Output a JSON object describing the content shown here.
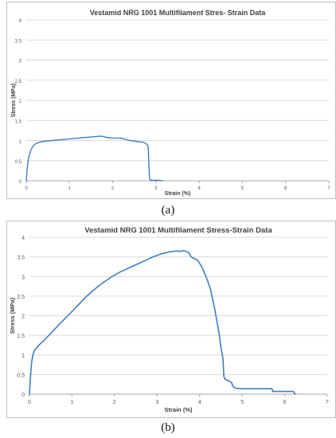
{
  "panels": [
    {
      "caption": "(a)",
      "chart_data": {
        "type": "line",
        "title": "Vestamid NRG 1001 Multifilament Stres- Strain Data",
        "xlabel": "Strain (%)",
        "ylabel": "Stress (MPa)",
        "xlim": [
          0,
          7
        ],
        "ylim": [
          0,
          4
        ],
        "xticks": [
          0,
          1,
          2,
          3,
          4,
          5,
          6,
          7
        ],
        "yticks": [
          0,
          0.5,
          1,
          1.5,
          2,
          2.5,
          3,
          3.5,
          4
        ],
        "ytick_labels": [
          "0",
          "0.5",
          "1",
          "1.5",
          "2",
          "2.5",
          "3",
          "3.5",
          "4"
        ],
        "grid": "horizontal",
        "legend": "none",
        "series": [
          {
            "color": "#3b7fc4",
            "x": [
              0,
              0.02,
              0.05,
              0.1,
              0.15,
              0.2,
              0.3,
              0.45,
              0.6,
              0.8,
              1.0,
              1.2,
              1.4,
              1.6,
              1.75,
              1.85,
              2.0,
              2.2,
              2.4,
              2.55,
              2.7,
              2.78,
              2.82,
              2.83,
              2.84,
              2.85,
              2.86,
              2.88,
              2.9,
              2.92,
              3.1,
              3.15
            ],
            "y": [
              0,
              0.3,
              0.55,
              0.75,
              0.85,
              0.91,
              0.96,
              0.99,
              1.0,
              1.02,
              1.04,
              1.06,
              1.08,
              1.1,
              1.11,
              1.08,
              1.06,
              1.06,
              1.0,
              0.98,
              0.96,
              0.92,
              0.85,
              0.6,
              0.3,
              0.1,
              0.03,
              0.02,
              0.02,
              0.01,
              0.01,
              0.0
            ]
          }
        ]
      }
    },
    {
      "caption": "(b)",
      "chart_data": {
        "type": "line",
        "title": "Vestamid NRG 1001 Multifilament Stress-Strain Data",
        "xlabel": "Strain (%)",
        "ylabel": "Stress (MPa)",
        "xlim": [
          0,
          7
        ],
        "ylim": [
          0,
          4
        ],
        "xticks": [
          0,
          1,
          2,
          3,
          4,
          5,
          6,
          7
        ],
        "yticks": [
          0,
          0.5,
          1,
          1.5,
          2,
          2.5,
          3,
          3.5,
          4
        ],
        "ytick_labels": [
          "0",
          "0.5",
          "1",
          "1.5",
          "2",
          "2.5",
          "3",
          "3.5",
          "4"
        ],
        "grid": "horizontal",
        "legend": "none",
        "series": [
          {
            "color": "#3b7fc4",
            "x": [
              0,
              0.02,
              0.05,
              0.08,
              0.12,
              0.18,
              0.25,
              0.35,
              0.5,
              0.7,
              0.9,
              1.1,
              1.3,
              1.5,
              1.7,
              1.9,
              2.1,
              2.3,
              2.5,
              2.7,
              2.9,
              3.1,
              3.3,
              3.45,
              3.55,
              3.6,
              3.7,
              3.75,
              3.8,
              3.85,
              3.95,
              4.05,
              4.15,
              4.25,
              4.35,
              4.45,
              4.5,
              4.55,
              4.57,
              4.6,
              4.7,
              4.75,
              4.78,
              4.85,
              5.0,
              5.3,
              5.7,
              5.72,
              6.2,
              6.25
            ],
            "y": [
              0,
              0.4,
              0.8,
              1.0,
              1.12,
              1.2,
              1.28,
              1.38,
              1.55,
              1.78,
              2.0,
              2.22,
              2.45,
              2.65,
              2.82,
              2.97,
              3.1,
              3.2,
              3.3,
              3.4,
              3.5,
              3.58,
              3.63,
              3.65,
              3.64,
              3.66,
              3.64,
              3.6,
              3.5,
              3.47,
              3.42,
              3.25,
              3.0,
              2.7,
              2.2,
              1.6,
              1.2,
              0.9,
              0.45,
              0.38,
              0.33,
              0.3,
              0.2,
              0.15,
              0.14,
              0.14,
              0.14,
              0.07,
              0.07,
              0.0
            ]
          }
        ]
      }
    }
  ]
}
